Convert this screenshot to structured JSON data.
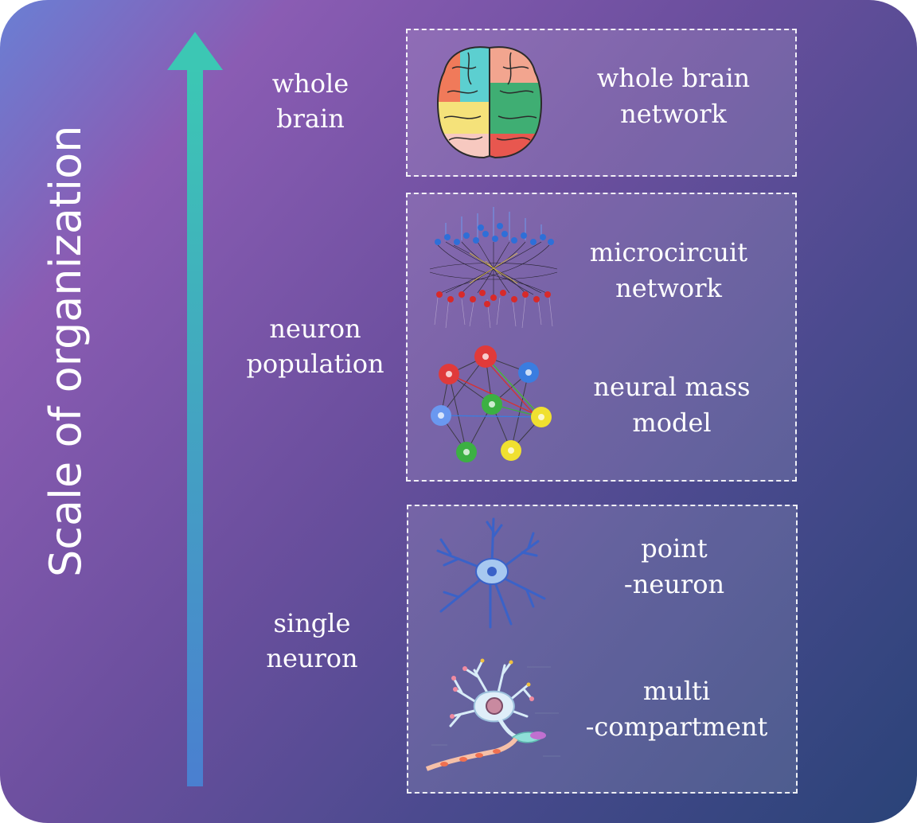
{
  "axis_title": "Scale of organization",
  "levels": [
    {
      "line1": "whole",
      "line2": "brain"
    },
    {
      "line1": "neuron",
      "line2": "population"
    },
    {
      "line1": "single",
      "line2": "neuron"
    }
  ],
  "models": [
    {
      "line1": "whole brain",
      "line2": "network",
      "icon": "brain-icon"
    },
    {
      "line1": "microcircuit",
      "line2": "network",
      "icon": "microcircuit-icon"
    },
    {
      "line1": "neural mass",
      "line2": "model",
      "icon": "neural-mass-graph-icon"
    },
    {
      "line1": "point",
      "line2": "-neuron",
      "icon": "point-neuron-icon"
    },
    {
      "line1": "multi",
      "line2": "-compartment",
      "icon": "multi-compartment-neuron-icon"
    }
  ],
  "colors": {
    "arrow_top": "#3cc7b4",
    "arrow_bottom": "#4a7fd0",
    "red": "#e03a3a",
    "blue": "#3a7de0",
    "green": "#3cb043",
    "yellow": "#f0e030"
  }
}
